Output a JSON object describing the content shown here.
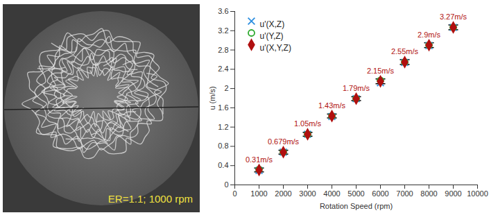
{
  "image": {
    "caption": "ER=1.1; 1000 rpm"
  },
  "chart_data": {
    "type": "scatter",
    "x_label": "Rotation Speed (rpm)",
    "y_label": "u (m/s)",
    "x": [
      1000,
      2000,
      3000,
      4000,
      5000,
      6000,
      7000,
      8000,
      9000
    ],
    "xlim": [
      0,
      10000
    ],
    "xticks": [
      0,
      1000,
      2000,
      3000,
      4000,
      5000,
      6000,
      7000,
      8000,
      9000,
      10000
    ],
    "ylim": [
      0,
      3.6
    ],
    "yticks": [
      0,
      0.4,
      0.8,
      1.2,
      1.6,
      2,
      2.4,
      2.8,
      3.2,
      3.6
    ],
    "grid": false,
    "legend": "top-left",
    "series": [
      {
        "name": "u'(X,Z)",
        "color": "#2e8fe0",
        "marker": "x",
        "values": [
          0.3,
          0.68,
          1.05,
          1.42,
          1.79,
          2.12,
          2.54,
          2.89,
          3.27
        ]
      },
      {
        "name": "u'(Y,Z)",
        "color": "#2eaa2e",
        "marker": "circle",
        "values": [
          0.32,
          0.68,
          1.05,
          1.43,
          1.79,
          2.17,
          2.55,
          2.9,
          3.27
        ]
      },
      {
        "name": "u'(X,Y,Z)",
        "color": "#b01010",
        "marker": "diamond",
        "values": [
          0.31,
          0.679,
          1.05,
          1.43,
          1.79,
          2.15,
          2.55,
          2.9,
          3.27
        ],
        "errors": [
          0.04,
          0.04,
          0.04,
          0.04,
          0.04,
          0.05,
          0.05,
          0.05,
          0.05
        ],
        "data_labels": true,
        "value_labels": [
          "0.31m/s",
          "0.679m/s",
          "1.05m/s",
          "1.43m/s",
          "1.79m/s",
          "2.15m/s",
          "2.55m/s",
          "2.9m/s",
          "3.27m/s"
        ]
      }
    ]
  }
}
